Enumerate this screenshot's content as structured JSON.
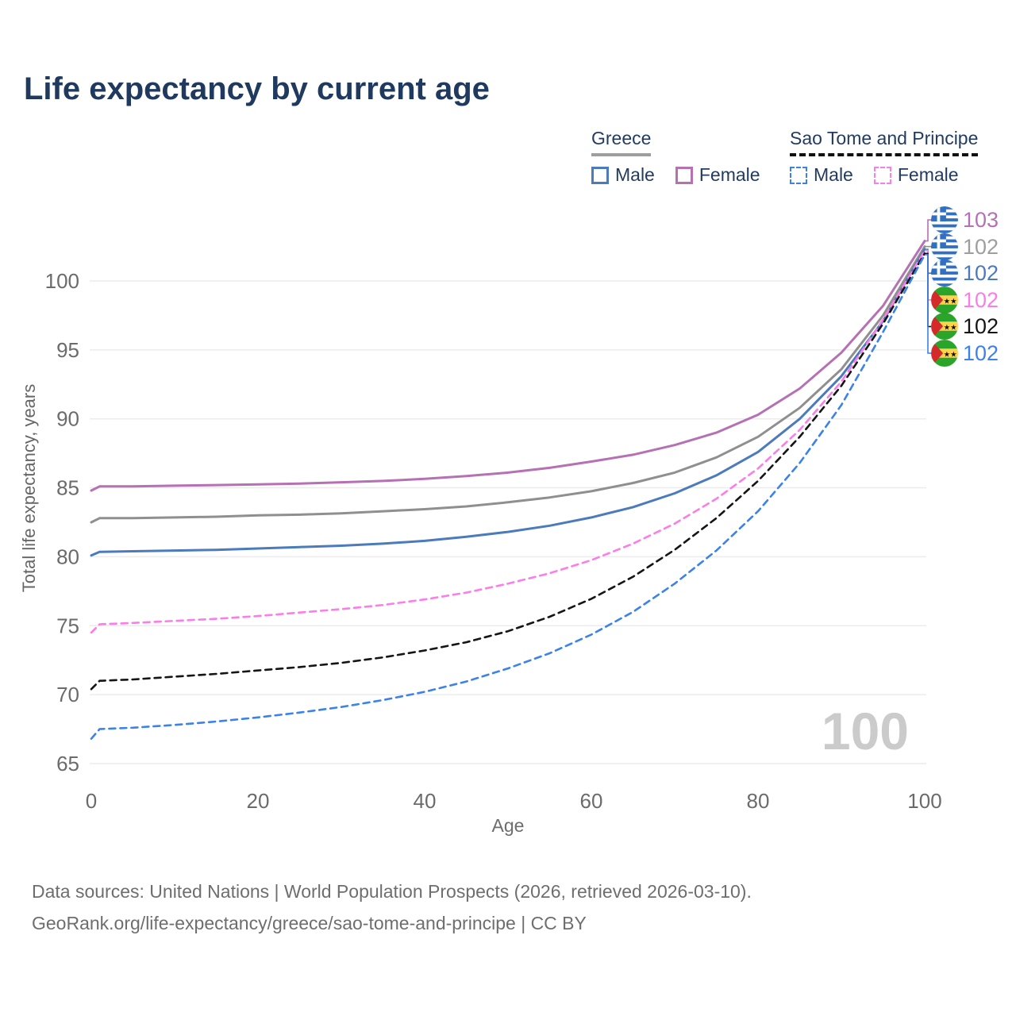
{
  "title": "Life expectancy by current age",
  "watermark": "100",
  "legend": {
    "groups": [
      {
        "label": "Greece",
        "line_style": "solid",
        "underline_color": "#9e9e9e",
        "items": [
          {
            "label": "Male",
            "color": "#4b7bbc"
          },
          {
            "label": "Female",
            "color": "#b571b3"
          }
        ]
      },
      {
        "label": "Sao Tome and Principe",
        "line_style": "dashed",
        "underline_color": "#111111",
        "items": [
          {
            "label": "Male",
            "color": "#3b82ea"
          },
          {
            "label": "Female",
            "color": "#fb7de7"
          }
        ]
      }
    ]
  },
  "axes": {
    "x": {
      "label": "Age",
      "ticks": [
        0,
        20,
        40,
        60,
        80,
        100
      ],
      "range": [
        0,
        100
      ]
    },
    "y": {
      "label": "Total life expectancy, years",
      "ticks": [
        65,
        70,
        75,
        80,
        85,
        90,
        95,
        100
      ],
      "range": [
        65,
        103
      ]
    }
  },
  "chart_data": {
    "type": "line",
    "title": "Life expectancy by current age",
    "xlabel": "Age",
    "ylabel": "Total life expectancy, years",
    "x_ticks": [
      0,
      20,
      40,
      60,
      80,
      100
    ],
    "y_ticks": [
      65,
      70,
      75,
      80,
      85,
      90,
      95,
      100
    ],
    "ages": [
      0,
      1,
      5,
      10,
      15,
      20,
      25,
      30,
      35,
      40,
      45,
      50,
      55,
      60,
      65,
      70,
      75,
      80,
      85,
      90,
      95,
      100
    ],
    "series": [
      {
        "name": "Greece Female",
        "country": "Greece",
        "sex": "Female",
        "color": "#b571b3",
        "dash": false,
        "end_label": "103",
        "flag": "greece",
        "values": [
          84.8,
          85.1,
          85.1,
          85.15,
          85.2,
          85.25,
          85.3,
          85.4,
          85.5,
          85.65,
          85.85,
          86.1,
          86.45,
          86.9,
          87.4,
          88.1,
          89.0,
          90.3,
          92.2,
          94.8,
          98.2,
          102.9
        ]
      },
      {
        "name": "Greece Both sexes",
        "country": "Greece",
        "sex": "Both",
        "color": "#8f8f8f",
        "dash": false,
        "end_label": "102",
        "flag": "greece",
        "values": [
          82.5,
          82.8,
          82.8,
          82.85,
          82.9,
          83.0,
          83.05,
          83.15,
          83.3,
          83.45,
          83.65,
          83.95,
          84.3,
          84.75,
          85.35,
          86.1,
          87.2,
          88.7,
          90.8,
          93.6,
          97.5,
          102.5
        ]
      },
      {
        "name": "Greece Male",
        "country": "Greece",
        "sex": "Male",
        "color": "#4b7bbc",
        "dash": false,
        "end_label": "102",
        "flag": "greece",
        "values": [
          80.1,
          80.35,
          80.4,
          80.45,
          80.5,
          80.6,
          80.7,
          80.8,
          80.95,
          81.15,
          81.45,
          81.8,
          82.25,
          82.85,
          83.6,
          84.6,
          85.9,
          87.6,
          90.0,
          93.1,
          97.1,
          102.3
        ]
      },
      {
        "name": "Sao Tome and Principe Female",
        "country": "Sao Tome and Principe",
        "sex": "Female",
        "color": "#fb7de7",
        "dash": true,
        "end_label": "102",
        "flag": "stp",
        "values": [
          74.5,
          75.1,
          75.2,
          75.35,
          75.5,
          75.7,
          75.95,
          76.2,
          76.5,
          76.9,
          77.4,
          78.05,
          78.8,
          79.75,
          80.95,
          82.4,
          84.2,
          86.4,
          89.2,
          92.7,
          97.2,
          102.2
        ]
      },
      {
        "name": "Sao Tome and Principe Both sexes",
        "country": "Sao Tome and Principe",
        "sex": "Both",
        "color": "#151515",
        "dash": true,
        "end_label": "102",
        "flag": "stp",
        "values": [
          70.4,
          71.0,
          71.1,
          71.3,
          71.5,
          71.75,
          72.0,
          72.3,
          72.7,
          73.2,
          73.8,
          74.6,
          75.65,
          76.95,
          78.55,
          80.5,
          82.8,
          85.5,
          88.7,
          92.4,
          96.9,
          102.0
        ]
      },
      {
        "name": "Sao Tome and Principe Male",
        "country": "Sao Tome and Principe",
        "sex": "Male",
        "color": "#3b82ea",
        "dash": true,
        "end_label": "102",
        "flag": "stp",
        "values": [
          66.8,
          67.5,
          67.6,
          67.8,
          68.05,
          68.35,
          68.7,
          69.1,
          69.6,
          70.2,
          70.95,
          71.9,
          73.0,
          74.35,
          76.0,
          78.05,
          80.45,
          83.3,
          86.8,
          91.0,
          96.3,
          101.9
        ]
      }
    ]
  },
  "end_labels": [
    {
      "value": "103",
      "color": "#b571b3",
      "flag_ref": "#flag-greece"
    },
    {
      "value": "102",
      "color": "#9e9e9e",
      "flag_ref": "#flag-greece"
    },
    {
      "value": "102",
      "color": "#4b7bbc",
      "flag_ref": "#flag-greece"
    },
    {
      "value": "102",
      "color": "#fb7de7",
      "flag_ref": "#flag-stp"
    },
    {
      "value": "102",
      "color": "#151515",
      "flag_ref": "#flag-stp"
    },
    {
      "value": "102",
      "color": "#3b82ea",
      "flag_ref": "#flag-stp"
    }
  ],
  "footer": {
    "line1": "Data sources: United Nations | World Population Prospects (2026, retrieved 2026-03-10).",
    "line2": "GeoRank.org/life-expectancy/greece/sao-tome-and-principe | CC BY"
  }
}
